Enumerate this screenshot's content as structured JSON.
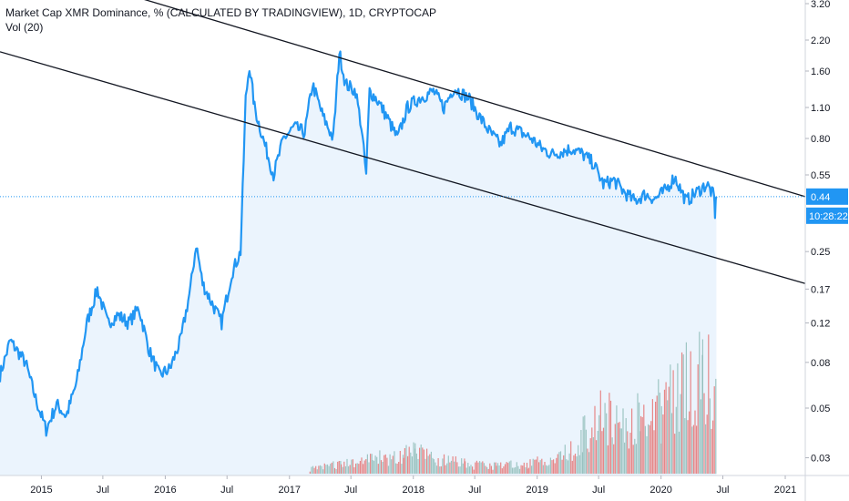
{
  "legend": {
    "title": "Market Cap XMR Dominance, % (CALCULATED BY TRADINGVIEW), 1D, CRYPTOCAP",
    "volume": "Vol (20)"
  },
  "price_badge": {
    "value": "0.44",
    "countdown": "10:28:22"
  },
  "colors": {
    "line": "#2196f3",
    "area": "#e3f0fc",
    "vol_up": "#8fbcb9",
    "vol_down": "#e57373",
    "trendline": "#131722",
    "badge_bg": "#2196f3"
  },
  "chart_data": {
    "type": "line",
    "title": "Market Cap XMR Dominance, % (CALCULATED BY TRADINGVIEW), 1D, CRYPTOCAP",
    "y_scale": "log",
    "ylim": [
      0.025,
      3.2
    ],
    "y_ticks": [
      "3.20",
      "2.20",
      "1.60",
      "1.10",
      "0.80",
      "0.55",
      "0.25",
      "0.17",
      "0.12",
      "0.08",
      "0.05",
      "0.03"
    ],
    "y_tick_values": [
      3.2,
      2.2,
      1.6,
      1.1,
      0.8,
      0.55,
      0.25,
      0.17,
      0.12,
      0.08,
      0.05,
      0.03
    ],
    "x_ticks": [
      "2015",
      "Jul",
      "2016",
      "Jul",
      "2017",
      "Jul",
      "2018",
      "Jul",
      "2019",
      "Jul",
      "2020",
      "Jul",
      "2021"
    ],
    "x_tick_dates": [
      "2015-01-01",
      "2015-07-01",
      "2016-01-01",
      "2016-07-01",
      "2017-01-01",
      "2017-07-01",
      "2018-01-01",
      "2018-07-01",
      "2019-01-01",
      "2019-07-01",
      "2020-01-01",
      "2020-07-01",
      "2021-01-01"
    ],
    "xlim": [
      "2014-09-01",
      "2021-03-01"
    ],
    "series": [
      {
        "points": [
          [
            "2014-09-01",
            0.07
          ],
          [
            "2014-10-01",
            0.1
          ],
          [
            "2014-11-15",
            0.08
          ],
          [
            "2014-12-15",
            0.055
          ],
          [
            "2015-01-15",
            0.04
          ],
          [
            "2015-02-15",
            0.052
          ],
          [
            "2015-03-15",
            0.046
          ],
          [
            "2015-04-15",
            0.065
          ],
          [
            "2015-05-15",
            0.12
          ],
          [
            "2015-06-15",
            0.17
          ],
          [
            "2015-07-15",
            0.12
          ],
          [
            "2015-08-15",
            0.13
          ],
          [
            "2015-09-15",
            0.12
          ],
          [
            "2015-10-15",
            0.14
          ],
          [
            "2015-11-15",
            0.09
          ],
          [
            "2015-12-15",
            0.07
          ],
          [
            "2016-01-15",
            0.075
          ],
          [
            "2016-02-15",
            0.1
          ],
          [
            "2016-03-15",
            0.17
          ],
          [
            "2016-04-01",
            0.27
          ],
          [
            "2016-04-20",
            0.18
          ],
          [
            "2016-05-15",
            0.15
          ],
          [
            "2016-06-15",
            0.12
          ],
          [
            "2016-07-15",
            0.2
          ],
          [
            "2016-08-10",
            0.25
          ],
          [
            "2016-08-25",
            1.2
          ],
          [
            "2016-09-05",
            1.7
          ],
          [
            "2016-09-20",
            1.1
          ],
          [
            "2016-10-15",
            0.8
          ],
          [
            "2016-11-15",
            0.55
          ],
          [
            "2016-12-15",
            0.8
          ],
          [
            "2017-01-15",
            0.9
          ],
          [
            "2017-02-15",
            0.85
          ],
          [
            "2017-03-10",
            1.4
          ],
          [
            "2017-04-10",
            1.0
          ],
          [
            "2017-05-10",
            0.8
          ],
          [
            "2017-05-28",
            1.95
          ],
          [
            "2017-06-15",
            1.4
          ],
          [
            "2017-07-15",
            1.3
          ],
          [
            "2017-08-01",
            0.9
          ],
          [
            "2017-08-15",
            0.55
          ],
          [
            "2017-08-25",
            1.3
          ],
          [
            "2017-09-15",
            1.2
          ],
          [
            "2017-10-15",
            1.0
          ],
          [
            "2017-11-15",
            0.8
          ],
          [
            "2017-12-15",
            1.1
          ],
          [
            "2018-01-15",
            1.2
          ],
          [
            "2018-03-01",
            1.3
          ],
          [
            "2018-04-01",
            1.1
          ],
          [
            "2018-05-01",
            1.35
          ],
          [
            "2018-06-15",
            1.2
          ],
          [
            "2018-07-15",
            1.0
          ],
          [
            "2018-08-15",
            0.85
          ],
          [
            "2018-09-15",
            0.75
          ],
          [
            "2018-10-15",
            0.9
          ],
          [
            "2018-11-15",
            0.85
          ],
          [
            "2018-12-15",
            0.8
          ],
          [
            "2019-01-15",
            0.72
          ],
          [
            "2019-02-15",
            0.68
          ],
          [
            "2019-03-15",
            0.7
          ],
          [
            "2019-04-15",
            0.72
          ],
          [
            "2019-05-15",
            0.68
          ],
          [
            "2019-06-15",
            0.62
          ],
          [
            "2019-07-15",
            0.5
          ],
          [
            "2019-08-15",
            0.52
          ],
          [
            "2019-09-15",
            0.46
          ],
          [
            "2019-10-15",
            0.42
          ],
          [
            "2019-11-15",
            0.45
          ],
          [
            "2019-12-15",
            0.43
          ],
          [
            "2020-01-15",
            0.47
          ],
          [
            "2020-02-10",
            0.54
          ],
          [
            "2020-03-15",
            0.42
          ],
          [
            "2020-04-15",
            0.46
          ],
          [
            "2020-05-15",
            0.5
          ],
          [
            "2020-06-05",
            0.44
          ],
          [
            "2020-06-08",
            0.37
          ],
          [
            "2020-06-12",
            0.44
          ]
        ]
      }
    ],
    "volume": [
      {
        "x": "2017-03-01",
        "v": 0.05
      },
      {
        "x": "2017-06-01",
        "v": 0.1
      },
      {
        "x": "2017-09-01",
        "v": 0.15
      },
      {
        "x": "2017-12-01",
        "v": 0.2
      },
      {
        "x": "2018-01-05",
        "v": 0.25
      },
      {
        "x": "2018-03-01",
        "v": 0.15
      },
      {
        "x": "2018-06-01",
        "v": 0.1
      },
      {
        "x": "2018-09-01",
        "v": 0.08
      },
      {
        "x": "2018-12-01",
        "v": 0.1
      },
      {
        "x": "2019-03-01",
        "v": 0.15
      },
      {
        "x": "2019-05-15",
        "v": 0.4
      },
      {
        "x": "2019-07-01",
        "v": 0.6
      },
      {
        "x": "2019-09-01",
        "v": 0.5
      },
      {
        "x": "2019-11-01",
        "v": 0.55
      },
      {
        "x": "2020-01-01",
        "v": 0.65
      },
      {
        "x": "2020-03-01",
        "v": 0.9
      },
      {
        "x": "2020-05-01",
        "v": 1.0
      },
      {
        "x": "2020-06-12",
        "v": 1.0
      }
    ],
    "trendlines": [
      {
        "from": [
          "2014-09-01",
          5.2
        ],
        "to": [
          "2021-03-01",
          0.44
        ]
      },
      {
        "from": [
          "2014-09-01",
          1.95
        ],
        "to": [
          "2021-03-01",
          0.18
        ]
      }
    ],
    "last_value": 0.44,
    "grid": false
  }
}
